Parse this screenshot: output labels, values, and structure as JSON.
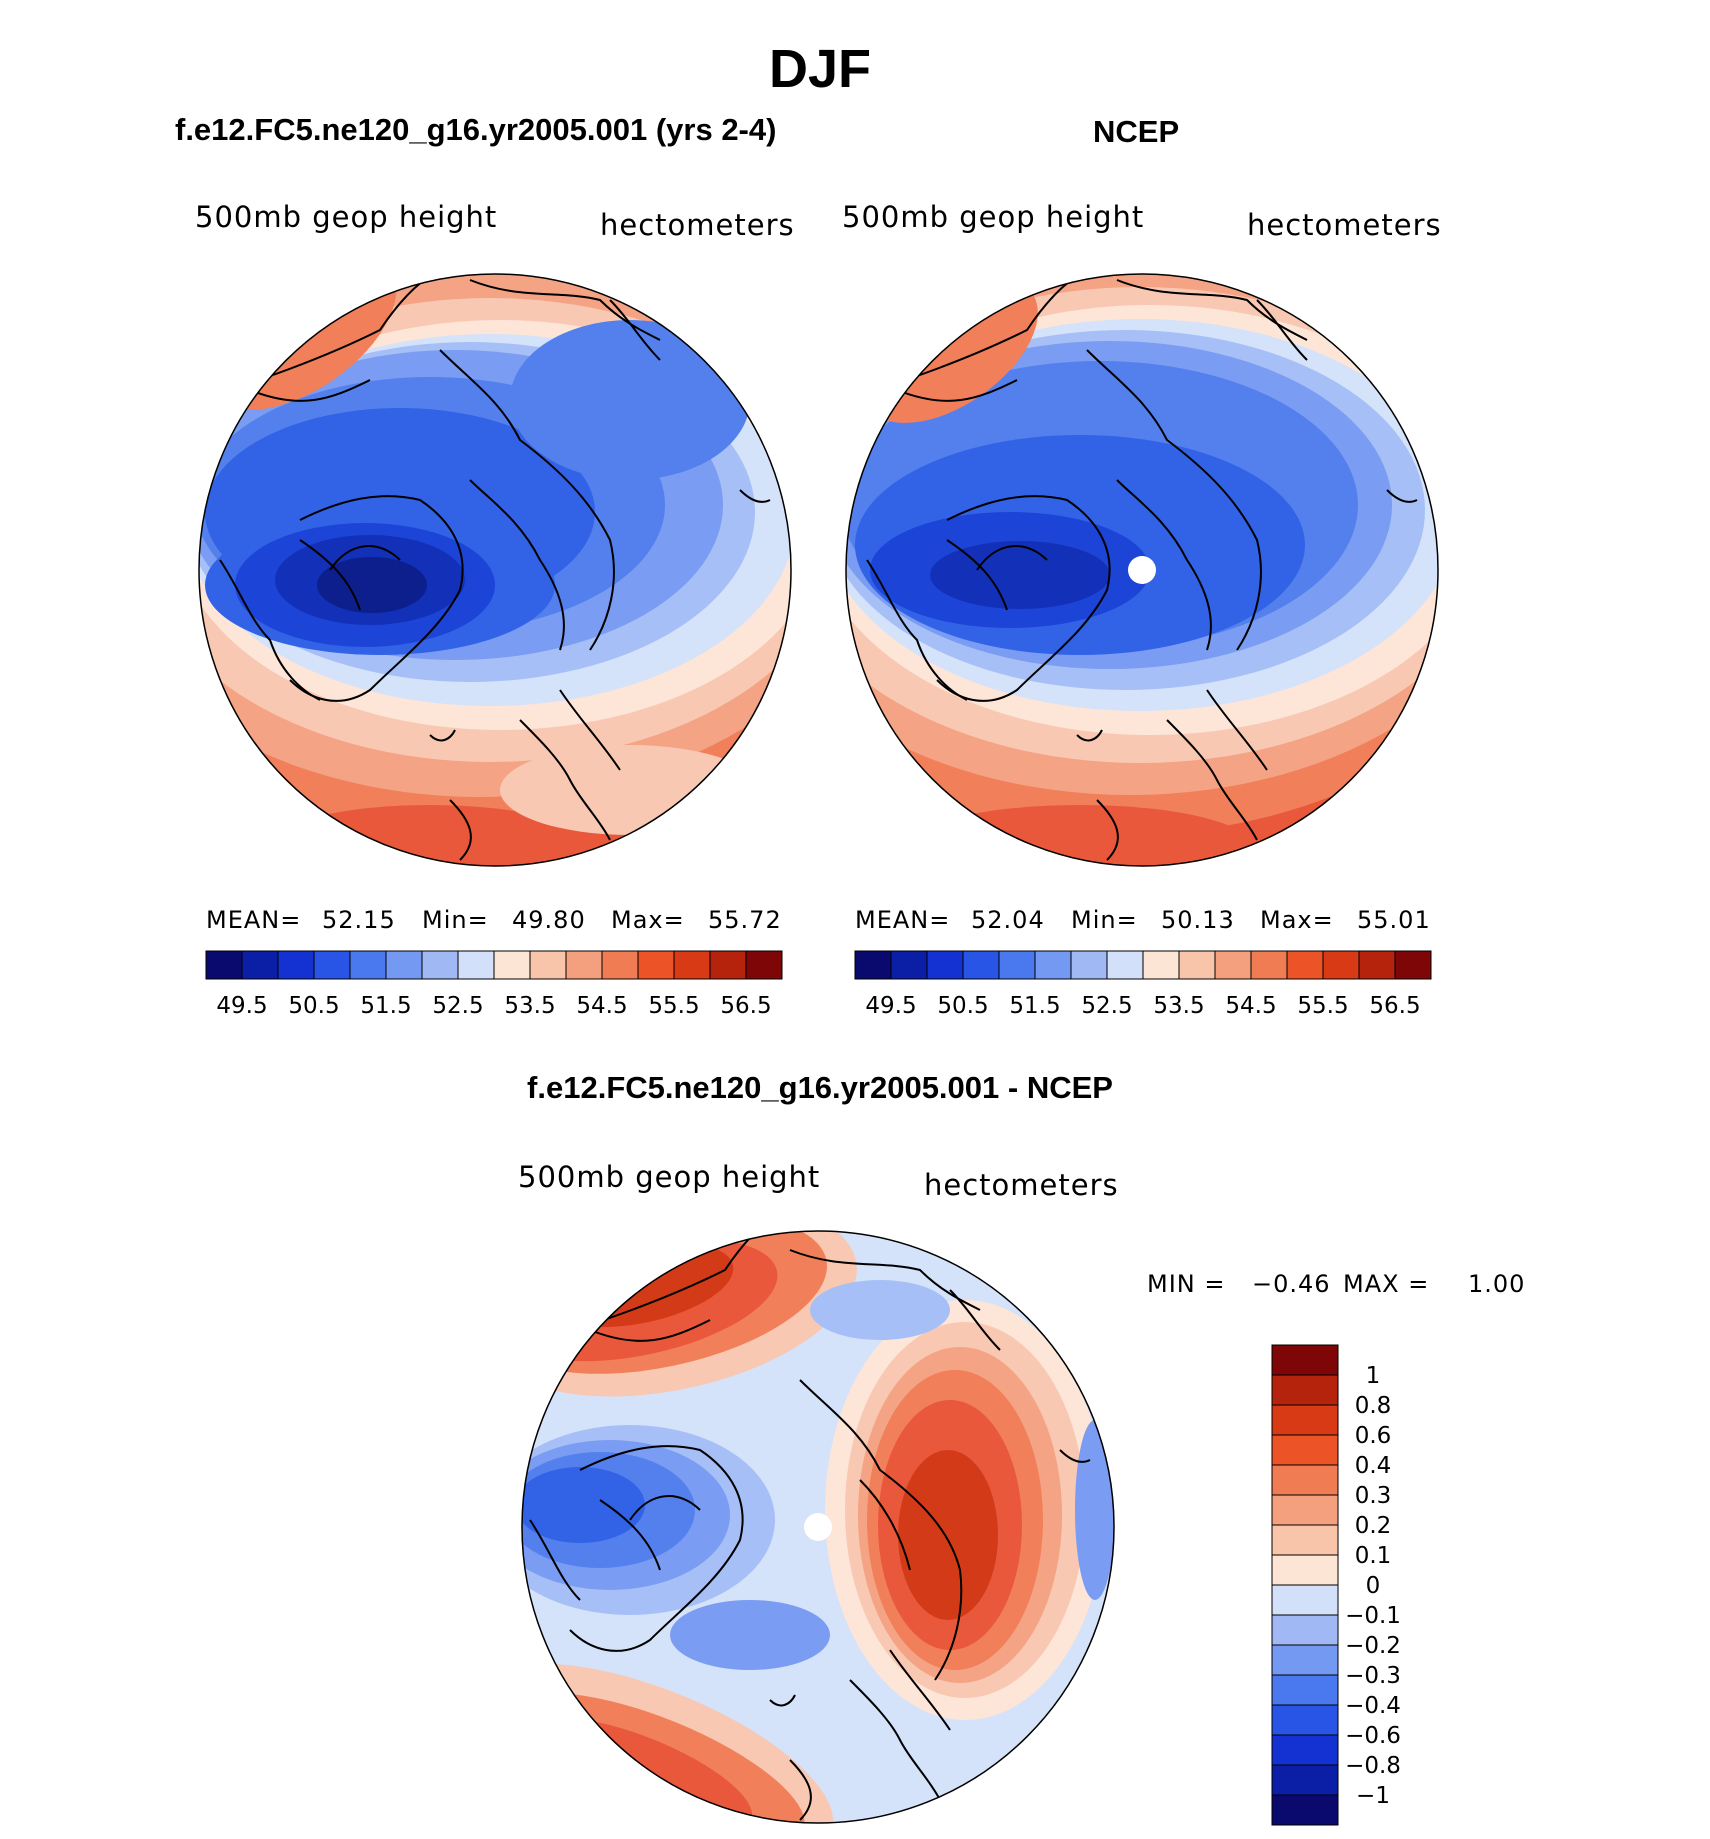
{
  "title": "DJF",
  "panel_model": {
    "title": "f.e12.FC5.ne120_g16.yr2005.001 (yrs 2-4)",
    "variable": "500mb  geop  height",
    "units": "hectometers",
    "stats": {
      "mean_label": "MEAN=",
      "mean": "52.15",
      "min_label": "Min=",
      "min": "49.80",
      "max_label": "Max=",
      "max": "55.72"
    }
  },
  "panel_obs": {
    "title": "NCEP",
    "variable": "500mb  geop  height",
    "units": "hectometers",
    "stats": {
      "mean_label": "MEAN=",
      "mean": "52.04",
      "min_label": "Min=",
      "min": "50.13",
      "max_label": "Max=",
      "max": "55.01"
    }
  },
  "panel_diff": {
    "title": "f.e12.FC5.ne120_g16.yr2005.001 - NCEP",
    "variable": "500mb  geop  height",
    "units": "hectometers",
    "minmax": {
      "min_label": "MIN =",
      "min": "−0.46",
      "max_label": "MAX =",
      "max": "1.00"
    }
  },
  "colorbar_abs": {
    "colors": [
      "#0a0a6e",
      "#0b1ea6",
      "#1432d2",
      "#2855e6",
      "#4a78ee",
      "#7399f2",
      "#a0b9f5",
      "#d2e0f9",
      "#fde5d6",
      "#f8c5aa",
      "#f4a07e",
      "#ef7c52",
      "#ec5428",
      "#d83a15",
      "#b5230c",
      "#7e0606"
    ],
    "labels": [
      "49.5",
      "50.5",
      "51.5",
      "52.5",
      "53.5",
      "54.5",
      "55.5",
      "56.5"
    ]
  },
  "colorbar_diff": {
    "colors": [
      "#0a0a6e",
      "#0b1ea6",
      "#1432d2",
      "#2855e6",
      "#4a78ee",
      "#7399f2",
      "#a0b9f5",
      "#d2e0f9",
      "#fde5d6",
      "#f8c5aa",
      "#f4a07e",
      "#ef7c52",
      "#ec5428",
      "#d83a15",
      "#b5230c",
      "#7e0606"
    ],
    "labels": [
      "1",
      "0.8",
      "0.6",
      "0.4",
      "0.3",
      "0.2",
      "0.1",
      "0",
      "−0.1",
      "−0.2",
      "−0.3",
      "−0.4",
      "−0.6",
      "−0.8",
      "−1"
    ]
  }
}
